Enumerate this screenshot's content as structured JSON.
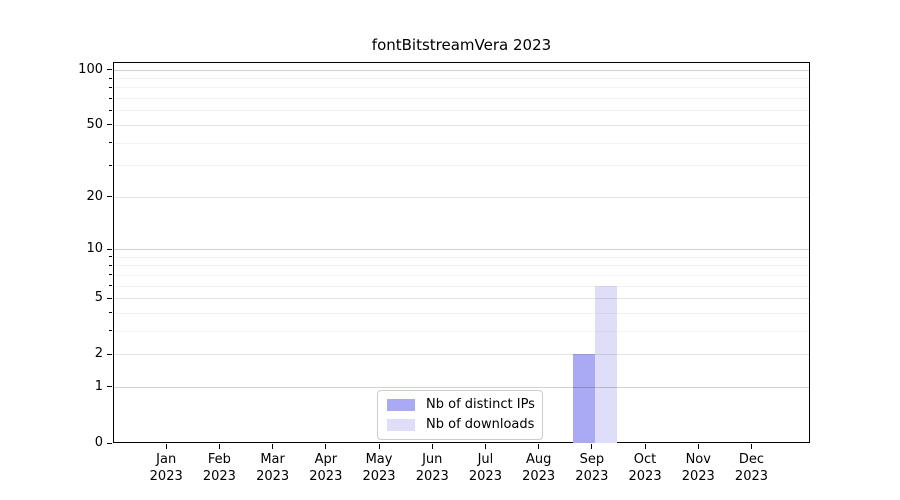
{
  "chart_data": {
    "type": "bar",
    "title": "fontBitstreamVera 2023",
    "x_axis": {
      "months": [
        "Jan",
        "Feb",
        "Mar",
        "Apr",
        "May",
        "Jun",
        "Jul",
        "Aug",
        "Sep",
        "Oct",
        "Nov",
        "Dec"
      ],
      "year": "2023"
    },
    "y_axis": {
      "scale": "log1p",
      "range": [
        0,
        110
      ],
      "ticks": [
        0,
        1,
        2,
        5,
        10,
        20,
        50,
        100
      ],
      "decade_ticks": [
        1,
        10,
        100
      ],
      "minor_gridlines": [
        3,
        4,
        6,
        7,
        8,
        9,
        30,
        40,
        60,
        70,
        80,
        90
      ]
    },
    "series": [
      {
        "name": "Nb of distinct IPs",
        "color": "#a9a9f4",
        "values": [
          0,
          0,
          0,
          0,
          0,
          0,
          0,
          0,
          2,
          0,
          0,
          0
        ]
      },
      {
        "name": "Nb of downloads",
        "color": "#dedef8",
        "values": [
          0,
          0,
          0,
          0,
          0,
          0,
          0,
          0,
          6,
          0,
          0,
          0
        ]
      }
    ],
    "legend_position": "lower center",
    "grid": true
  },
  "colors": {
    "spine": "#000000",
    "major_grid": "rgba(0,0,0,0.18)",
    "mid_grid": "rgba(0,0,0,0.11)",
    "minor_grid": "rgba(0,0,0,0.05)",
    "background": "#ffffff"
  }
}
